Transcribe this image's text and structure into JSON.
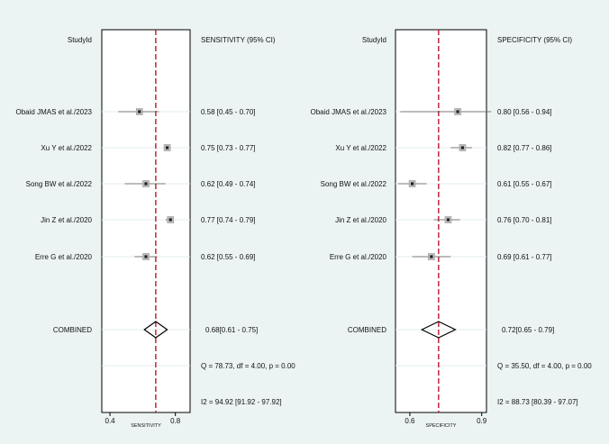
{
  "chart_data": [
    {
      "type": "forest",
      "study_header": "StudyId",
      "estimate_header": "SENSITIVITY (95% CI)",
      "xlabel": "SENSITIVITY",
      "xlim": [
        0.35,
        0.89
      ],
      "ticks": [
        {
          "v": 0.4,
          "label": "0.4"
        },
        {
          "v": 0.8,
          "label": "0.8"
        }
      ],
      "studies": [
        {
          "name": "Obaid JMAS et al./2023",
          "est": 0.58,
          "lo": 0.45,
          "hi": 0.7,
          "text": "0.58 [0.45 - 0.70]"
        },
        {
          "name": "Xu Y et al./2022",
          "est": 0.75,
          "lo": 0.73,
          "hi": 0.77,
          "text": "0.75 [0.73 - 0.77]"
        },
        {
          "name": "Song BW et al./2022",
          "est": 0.62,
          "lo": 0.49,
          "hi": 0.74,
          "text": "0.62 [0.49 - 0.74]"
        },
        {
          "name": "Jin Z et al./2020",
          "est": 0.77,
          "lo": 0.74,
          "hi": 0.79,
          "text": "0.77 [0.74 - 0.79]"
        },
        {
          "name": "Erre G et al./2020",
          "est": 0.62,
          "lo": 0.55,
          "hi": 0.69,
          "text": "0.62 [0.55 - 0.69]"
        }
      ],
      "combined": {
        "name": "COMBINED",
        "est": 0.68,
        "lo": 0.61,
        "hi": 0.75,
        "text": "0.68[0.61 - 0.75]"
      },
      "q_text": "Q = 78.73, df = 4.00, p =  0.00",
      "i2_text": "I2 = 94.92 [91.92 - 97.92]"
    },
    {
      "type": "forest",
      "study_header": "StudyId",
      "estimate_header": "SPECIFICITY (95% CI)",
      "xlabel": "SPECIFICITY",
      "xlim": [
        0.54,
        0.92
      ],
      "ticks": [
        {
          "v": 0.6,
          "label": "0.6"
        },
        {
          "v": 0.9,
          "label": "0.9"
        }
      ],
      "studies": [
        {
          "name": "Obaid JMAS et al./2023",
          "est": 0.8,
          "lo": 0.56,
          "hi": 0.94,
          "text": "0.80 [0.56 - 0.94]"
        },
        {
          "name": "Xu Y et al./2022",
          "est": 0.82,
          "lo": 0.77,
          "hi": 0.86,
          "text": "0.82 [0.77 - 0.86]"
        },
        {
          "name": "Song BW et al./2022",
          "est": 0.61,
          "lo": 0.55,
          "hi": 0.67,
          "text": "0.61 [0.55 - 0.67]"
        },
        {
          "name": "Jin Z et al./2020",
          "est": 0.76,
          "lo": 0.7,
          "hi": 0.81,
          "text": "0.76 [0.70 - 0.81]"
        },
        {
          "name": "Erre G et al./2020",
          "est": 0.69,
          "lo": 0.61,
          "hi": 0.77,
          "text": "0.69 [0.61 - 0.77]"
        }
      ],
      "combined": {
        "name": "COMBINED",
        "est": 0.72,
        "lo": 0.65,
        "hi": 0.79,
        "text": "0.72[0.65 - 0.79]"
      },
      "q_text": "Q = 35.50, df = 4.00, p =  0.00",
      "i2_text": "I2 = 88.73 [80.39 - 97.07]"
    }
  ],
  "colors": {
    "background": "#ebf3f3",
    "plot_background": "#ffffff",
    "pooled_line": "#c0142e",
    "marker": "#8a8a8a",
    "gridline": "#e3ecec"
  }
}
